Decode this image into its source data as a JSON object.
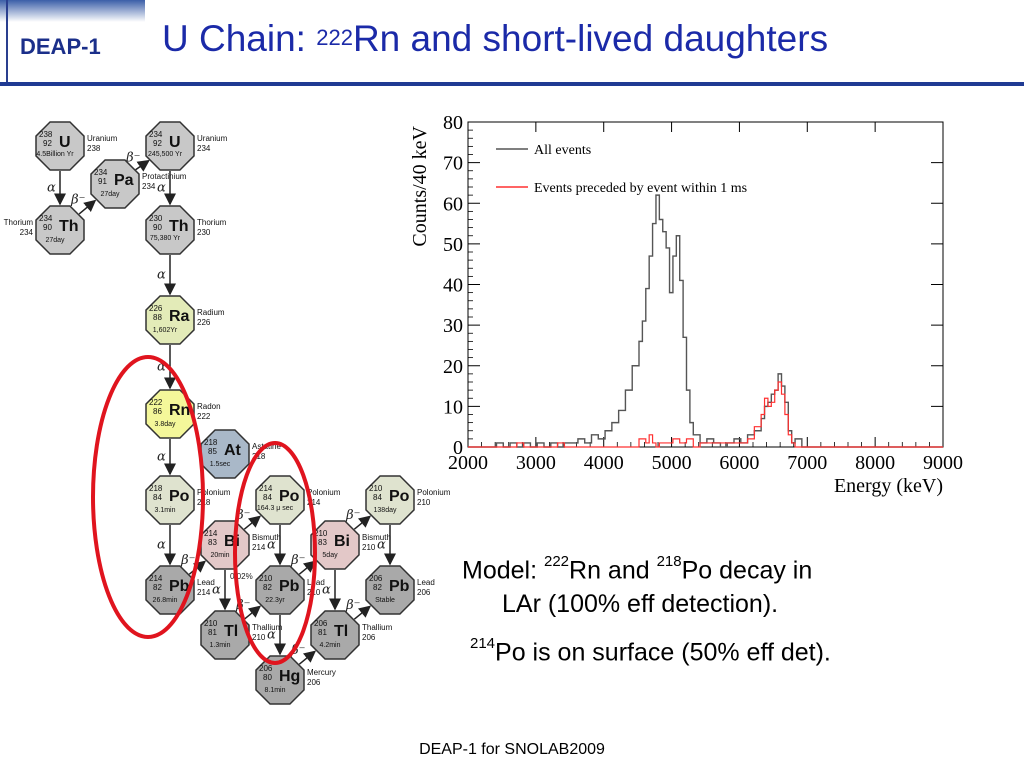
{
  "header": {
    "logo": "DEAP-1",
    "title_prefix": "U Chain: ",
    "title_mass": "222",
    "title_rest": "Rn and short-lived daughters"
  },
  "decay_chain": {
    "nodes": [
      {
        "id": "u238",
        "symbol": "U",
        "mass": "238",
        "z": "92",
        "halflife": "4.5Billion Yr",
        "name": "Uranium",
        "name_mass": "238",
        "fill": "#c8c8c8"
      },
      {
        "id": "pa234",
        "symbol": "Pa",
        "mass": "234",
        "z": "91",
        "halflife": "27day",
        "name": "Protactinium",
        "name_mass": "234",
        "fill": "#c8c8c8"
      },
      {
        "id": "th234",
        "symbol": "Th",
        "mass": "234",
        "z": "90",
        "halflife": "27day",
        "name": "Thorium",
        "name_mass": "234",
        "fill": "#c8c8c8"
      },
      {
        "id": "u234",
        "symbol": "U",
        "mass": "234",
        "z": "92",
        "halflife": "245,500 Yr",
        "name": "Uranium",
        "name_mass": "234",
        "fill": "#c8c8c8"
      },
      {
        "id": "th230",
        "symbol": "Th",
        "mass": "230",
        "z": "90",
        "halflife": "75,380 Yr",
        "name": "Thorium",
        "name_mass": "230",
        "fill": "#c8c8c8"
      },
      {
        "id": "ra226",
        "symbol": "Ra",
        "mass": "226",
        "z": "88",
        "halflife": "1,602Yr",
        "name": "Radium",
        "name_mass": "226",
        "fill": "#e3ebb8"
      },
      {
        "id": "rn222",
        "symbol": "Rn",
        "mass": "222",
        "z": "86",
        "halflife": "3.8day",
        "name": "Radon",
        "name_mass": "222",
        "fill": "#f4f79a"
      },
      {
        "id": "at218",
        "symbol": "At",
        "mass": "218",
        "z": "85",
        "halflife": "1.5sec",
        "name": "Astatine",
        "name_mass": "218",
        "fill": "#a9b8c8"
      },
      {
        "id": "po218",
        "symbol": "Po",
        "mass": "218",
        "z": "84",
        "halflife": "3.1min",
        "name": "Polonium",
        "name_mass": "218",
        "fill": "#dfe3cf"
      },
      {
        "id": "pb214",
        "symbol": "Pb",
        "mass": "214",
        "z": "82",
        "halflife": "26.8min",
        "name": "Lead",
        "name_mass": "214",
        "fill": "#a9a9a9"
      },
      {
        "id": "bi214",
        "symbol": "Bi",
        "mass": "214",
        "z": "83",
        "halflife": "20min",
        "name": "Bismuth",
        "name_mass": "214",
        "fill": "#e3c8c8"
      },
      {
        "id": "po214",
        "symbol": "Po",
        "mass": "214",
        "z": "84",
        "halflife": "164.3 μ sec",
        "name": "Polonium",
        "name_mass": "214",
        "fill": "#dfe3cf"
      },
      {
        "id": "tl210",
        "symbol": "Tl",
        "mass": "210",
        "z": "81",
        "halflife": "1.3min",
        "name": "Thallium",
        "name_mass": "210",
        "fill": "#a9a9a9"
      },
      {
        "id": "pb210",
        "symbol": "Pb",
        "mass": "210",
        "z": "82",
        "halflife": "22.3yr",
        "name": "Lead",
        "name_mass": "210",
        "fill": "#a9a9a9"
      },
      {
        "id": "bi210",
        "symbol": "Bi",
        "mass": "210",
        "z": "83",
        "halflife": "5day",
        "name": "Bismuth",
        "name_mass": "210",
        "fill": "#e3c8c8"
      },
      {
        "id": "po210",
        "symbol": "Po",
        "mass": "210",
        "z": "84",
        "halflife": "138day",
        "name": "Polonium",
        "name_mass": "210",
        "fill": "#dfe3cf"
      },
      {
        "id": "hg206",
        "symbol": "Hg",
        "mass": "206",
        "z": "80",
        "halflife": "8.1min",
        "name": "Mercury",
        "name_mass": "206",
        "fill": "#a9a9a9"
      },
      {
        "id": "tl206",
        "symbol": "Tl",
        "mass": "206",
        "z": "81",
        "halflife": "4.2min",
        "name": "Thallium",
        "name_mass": "206",
        "fill": "#a9a9a9"
      },
      {
        "id": "pb206",
        "symbol": "Pb",
        "mass": "206",
        "z": "82",
        "halflife": "Stable",
        "name": "Lead",
        "name_mass": "206",
        "fill": "#a9a9a9"
      }
    ],
    "transitions": [
      {
        "from": "u238",
        "to": "th234",
        "type": "alpha"
      },
      {
        "from": "th234",
        "to": "pa234",
        "type": "beta"
      },
      {
        "from": "pa234",
        "to": "u234",
        "type": "beta"
      },
      {
        "from": "u234",
        "to": "th230",
        "type": "alpha"
      },
      {
        "from": "th230",
        "to": "ra226",
        "type": "alpha"
      },
      {
        "from": "ra226",
        "to": "rn222",
        "type": "alpha"
      },
      {
        "from": "rn222",
        "to": "po218",
        "type": "alpha"
      },
      {
        "from": "po218",
        "to": "pb214",
        "type": "alpha"
      },
      {
        "from": "pb214",
        "to": "bi214",
        "type": "beta"
      },
      {
        "from": "bi214",
        "to": "po214",
        "type": "beta"
      },
      {
        "from": "po214",
        "to": "pb210",
        "type": "alpha"
      },
      {
        "from": "bi214",
        "to": "tl210",
        "type": "alpha"
      },
      {
        "from": "tl210",
        "to": "pb210",
        "type": "beta"
      },
      {
        "from": "pb210",
        "to": "bi210",
        "type": "beta"
      },
      {
        "from": "bi210",
        "to": "po210",
        "type": "beta"
      },
      {
        "from": "po210",
        "to": "pb206",
        "type": "alpha"
      },
      {
        "from": "pb210",
        "to": "hg206",
        "type": "alpha"
      },
      {
        "from": "hg206",
        "to": "tl206",
        "type": "beta"
      },
      {
        "from": "tl206",
        "to": "pb206",
        "type": "beta"
      },
      {
        "from": "bi210",
        "to": "tl206",
        "type": "alpha"
      }
    ],
    "symbols": {
      "alpha": "α",
      "beta": "β⁻"
    },
    "branch_label": "0.02%",
    "highlight_color": "#e0141e"
  },
  "chart_data": {
    "type": "line",
    "xlabel": "Energy (keV)",
    "ylabel": "Counts/40 keV",
    "xlim": [
      2000,
      9000
    ],
    "ylim": [
      0,
      80
    ],
    "x_ticks": [
      2000,
      3000,
      4000,
      5000,
      6000,
      7000,
      8000,
      9000
    ],
    "y_ticks": [
      0,
      10,
      20,
      30,
      40,
      50,
      60,
      70,
      80
    ],
    "grid": false,
    "legend_position": "top-left",
    "bin_width_keV": 40,
    "series": [
      {
        "name": "All events",
        "color": "#555555",
        "points": [
          [
            2000,
            0
          ],
          [
            2400,
            0
          ],
          [
            2500,
            1
          ],
          [
            2600,
            0
          ],
          [
            2700,
            1
          ],
          [
            2800,
            0
          ],
          [
            2900,
            1
          ],
          [
            3000,
            0
          ],
          [
            3100,
            1
          ],
          [
            3200,
            0
          ],
          [
            3300,
            1
          ],
          [
            3400,
            0
          ],
          [
            3500,
            1
          ],
          [
            3600,
            1
          ],
          [
            3700,
            2
          ],
          [
            3800,
            1
          ],
          [
            3900,
            3
          ],
          [
            4000,
            2
          ],
          [
            4100,
            4
          ],
          [
            4200,
            6
          ],
          [
            4300,
            9
          ],
          [
            4400,
            14
          ],
          [
            4500,
            20
          ],
          [
            4550,
            26
          ],
          [
            4600,
            31
          ],
          [
            4650,
            39
          ],
          [
            4700,
            47
          ],
          [
            4750,
            55
          ],
          [
            4800,
            62
          ],
          [
            4850,
            56
          ],
          [
            4900,
            53
          ],
          [
            4950,
            49
          ],
          [
            5000,
            38
          ],
          [
            5050,
            47
          ],
          [
            5100,
            52
          ],
          [
            5150,
            41
          ],
          [
            5200,
            27
          ],
          [
            5250,
            14
          ],
          [
            5300,
            6
          ],
          [
            5400,
            3
          ],
          [
            5500,
            1
          ],
          [
            5600,
            2
          ],
          [
            5700,
            1
          ],
          [
            5800,
            0
          ],
          [
            5900,
            1
          ],
          [
            6000,
            2
          ],
          [
            6100,
            1
          ],
          [
            6200,
            3
          ],
          [
            6300,
            4
          ],
          [
            6350,
            7
          ],
          [
            6400,
            10
          ],
          [
            6450,
            11
          ],
          [
            6500,
            13
          ],
          [
            6550,
            14
          ],
          [
            6600,
            18
          ],
          [
            6650,
            15
          ],
          [
            6700,
            11
          ],
          [
            6750,
            4
          ],
          [
            6800,
            1
          ],
          [
            6900,
            2
          ],
          [
            7000,
            0
          ],
          [
            9000,
            0
          ]
        ]
      },
      {
        "name": "Events preceded by event within 1 ms",
        "color": "#ff3030",
        "points": [
          [
            2000,
            0
          ],
          [
            2700,
            0
          ],
          [
            2800,
            1
          ],
          [
            2900,
            0
          ],
          [
            3300,
            0
          ],
          [
            3400,
            1
          ],
          [
            3500,
            0
          ],
          [
            4500,
            0
          ],
          [
            4600,
            2
          ],
          [
            4650,
            1
          ],
          [
            4700,
            3
          ],
          [
            4750,
            1
          ],
          [
            4800,
            0
          ],
          [
            5000,
            1
          ],
          [
            5100,
            2
          ],
          [
            5200,
            1
          ],
          [
            5300,
            2
          ],
          [
            5400,
            0
          ],
          [
            6100,
            1
          ],
          [
            6200,
            2
          ],
          [
            6300,
            5
          ],
          [
            6350,
            8
          ],
          [
            6400,
            12
          ],
          [
            6450,
            10
          ],
          [
            6500,
            11
          ],
          [
            6550,
            14
          ],
          [
            6600,
            16
          ],
          [
            6650,
            13
          ],
          [
            6700,
            8
          ],
          [
            6750,
            3
          ],
          [
            6800,
            1
          ],
          [
            6900,
            0
          ],
          [
            9000,
            0
          ]
        ]
      }
    ]
  },
  "model_text": {
    "prefix": "Model: ",
    "mass1": "222",
    "el1": "Rn and ",
    "mass2": "218",
    "el2": "Po decay in",
    "line2": "LAr (100% eff detection).",
    "po_mass": "214",
    "po_text": "Po is on surface (50% eff det)."
  },
  "footer": {
    "text": "DEAP-1 for SNOLAB2009"
  }
}
